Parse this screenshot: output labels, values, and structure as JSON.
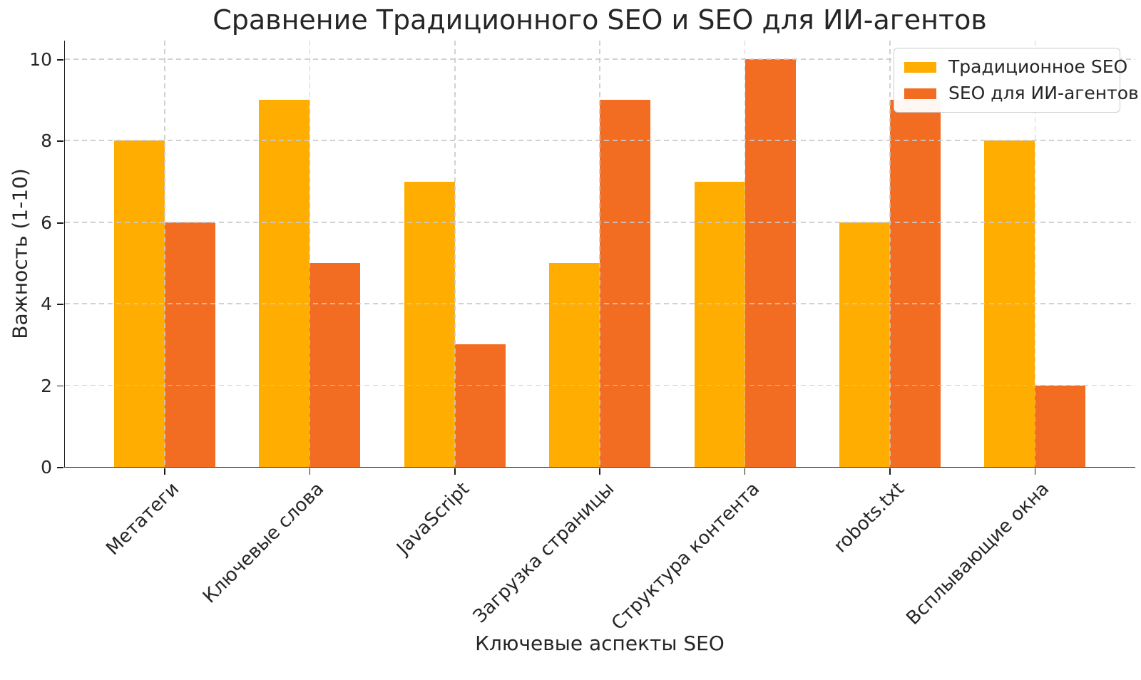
{
  "chart_data": {
    "type": "bar",
    "title": "Сравнение Традиционного SEO и SEO для ИИ-агентов",
    "xlabel": "Ключевые аспекты SEO",
    "ylabel": "Важность (1-10)",
    "categories": [
      "Метатеги",
      "Ключевые слова",
      "JavaScript",
      "Загрузка страницы",
      "Структура контента",
      "robots.txt",
      "Всплывающие окна"
    ],
    "series": [
      {
        "name": "Традиционное SEO",
        "color": "#FFAD00",
        "values": [
          8,
          9,
          7,
          5,
          7,
          6,
          8
        ]
      },
      {
        "name": "SEO для ИИ-агентов",
        "color": "#F26C21",
        "values": [
          6,
          5,
          3,
          9,
          10,
          9,
          2
        ]
      }
    ],
    "ylim": [
      0,
      10.47
    ],
    "yticks": [
      0,
      2,
      4,
      6,
      8,
      10
    ],
    "grid": {
      "style": "dashed",
      "color": "#c9c9c9",
      "horizontal": true,
      "vertical": true,
      "drawn_above_bars": true
    },
    "legend": {
      "position": "upper right"
    },
    "background": "#ffffff",
    "text_color": "#262626"
  }
}
